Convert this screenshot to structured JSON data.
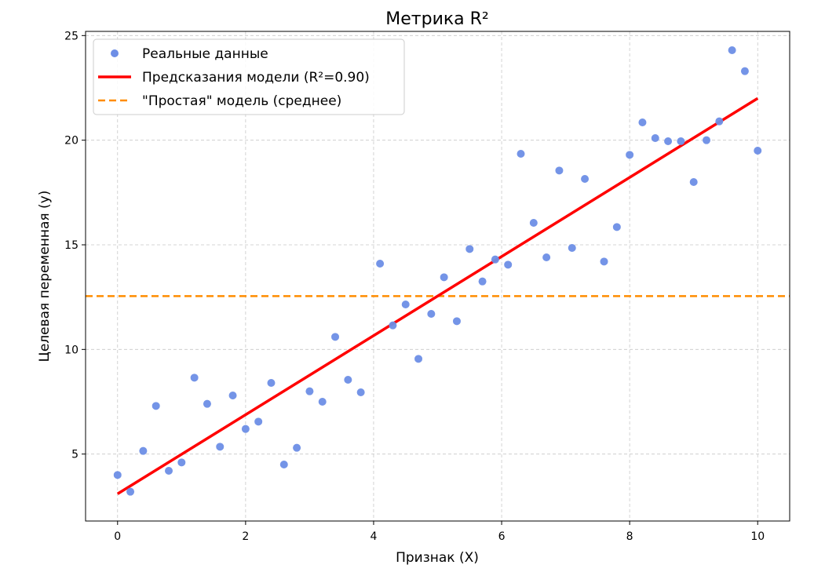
{
  "chart_data": {
    "type": "scatter",
    "title": "Метрика R²",
    "xlabel": "Признак (X)",
    "ylabel": "Целевая переменная (y)",
    "xlim": [
      -0.5,
      10.5
    ],
    "ylim": [
      1.8,
      25.2
    ],
    "xticks": [
      0,
      2,
      4,
      6,
      8,
      10
    ],
    "yticks": [
      5,
      10,
      15,
      20,
      25
    ],
    "grid": true,
    "legend_position": "top-left",
    "series": [
      {
        "name": "Реальные данные",
        "kind": "scatter",
        "color": "#6d8ee6",
        "x": [
          0,
          0.2,
          0.4,
          0.6,
          0.8,
          1.0,
          1.2,
          1.4,
          1.6,
          1.8,
          2.0,
          2.2,
          2.4,
          2.6,
          2.8,
          3.0,
          3.2,
          3.4,
          3.6,
          3.8,
          4.1,
          4.3,
          4.5,
          4.7,
          4.9,
          5.1,
          5.3,
          5.5,
          5.7,
          5.9,
          6.1,
          6.3,
          6.5,
          6.7,
          6.9,
          7.1,
          7.3,
          7.6,
          7.8,
          8.0,
          8.2,
          8.4,
          8.6,
          8.8,
          9.0,
          9.2,
          9.4,
          9.6,
          9.8,
          10.0
        ],
        "y": [
          4.0,
          3.2,
          5.15,
          7.3,
          4.2,
          4.6,
          8.65,
          7.4,
          5.35,
          7.8,
          6.2,
          6.55,
          8.4,
          4.5,
          5.3,
          8.0,
          7.5,
          10.6,
          8.55,
          7.95,
          14.1,
          11.15,
          12.15,
          9.55,
          11.7,
          13.45,
          11.35,
          14.8,
          13.25,
          14.3,
          14.05,
          19.35,
          16.05,
          14.4,
          18.55,
          14.85,
          18.15,
          14.2,
          15.85,
          19.3,
          20.85,
          20.1,
          19.95,
          19.95,
          18.0,
          20.0,
          20.9,
          24.3,
          23.3,
          19.5
        ]
      },
      {
        "name": "Предсказания модели (R²=0.90)",
        "kind": "line",
        "color": "#ff0000",
        "x": [
          0,
          10
        ],
        "y": [
          3.1,
          22.0
        ]
      },
      {
        "name": "\"Простая\" модель (среднее)",
        "kind": "hline",
        "color": "#ff8c00",
        "y": 12.55
      }
    ]
  }
}
